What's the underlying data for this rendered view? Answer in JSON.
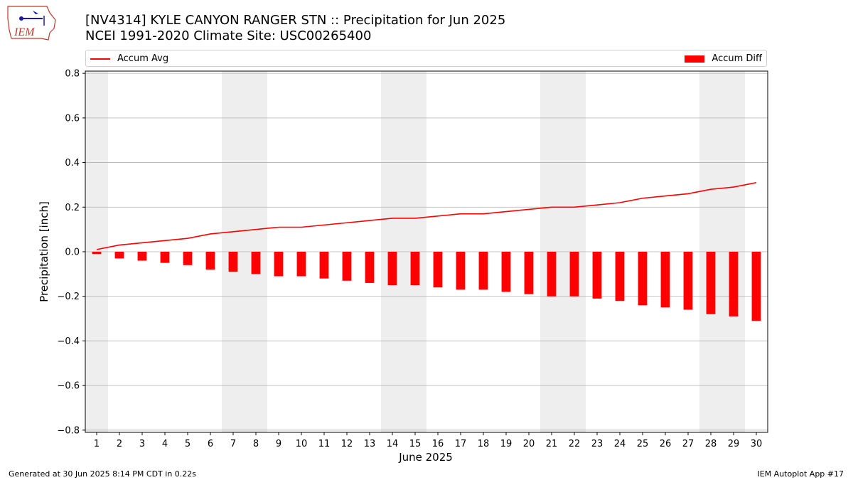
{
  "header": {
    "title_line1": "[NV4314] KYLE CANYON RANGER STN :: Precipitation for Jun 2025",
    "title_line2": "NCEI 1991-2020 Climate Site: USC00265400",
    "logo_text": "IEM"
  },
  "footer": {
    "generated": "Generated at 30 Jun 2025 8:14 PM CDT in 0.22s",
    "app": "IEM Autoplot App #17"
  },
  "colors": {
    "series": "#ff0000",
    "weekend_shade": "#eeeeee",
    "grid": "#b0b0b0",
    "logo_blue": "#1a1aa8",
    "logo_red": "#c0392b"
  },
  "chart_data": {
    "type": "bar",
    "title": "[NV4314] KYLE CANYON RANGER STN :: Precipitation for Jun 2025",
    "subtitle": "NCEI 1991-2020 Climate Site: USC00265400",
    "xlabel": "June 2025",
    "ylabel": "Precipitation [inch]",
    "x": [
      1,
      2,
      3,
      4,
      5,
      6,
      7,
      8,
      9,
      10,
      11,
      12,
      13,
      14,
      15,
      16,
      17,
      18,
      19,
      20,
      21,
      22,
      23,
      24,
      25,
      26,
      27,
      28,
      29,
      30
    ],
    "ylim": [
      -0.81,
      0.81
    ],
    "yticks": [
      -0.8,
      -0.6,
      -0.4,
      -0.2,
      0.0,
      0.2,
      0.4,
      0.6,
      0.8
    ],
    "ytick_labels": [
      "−0.8",
      "−0.6",
      "−0.4",
      "−0.2",
      "0.0",
      "0.2",
      "0.4",
      "0.6",
      "0.8"
    ],
    "grid": true,
    "legend_placement": "top",
    "shaded_days": [
      1,
      7,
      8,
      14,
      15,
      21,
      22,
      28,
      29
    ],
    "series": [
      {
        "name": "Accum Avg",
        "type": "line",
        "values": [
          0.01,
          0.03,
          0.04,
          0.05,
          0.06,
          0.08,
          0.09,
          0.1,
          0.11,
          0.11,
          0.12,
          0.13,
          0.14,
          0.15,
          0.15,
          0.16,
          0.17,
          0.17,
          0.18,
          0.19,
          0.2,
          0.2,
          0.21,
          0.22,
          0.24,
          0.25,
          0.26,
          0.28,
          0.29,
          0.31
        ]
      },
      {
        "name": "Accum Diff",
        "type": "bar",
        "values": [
          -0.01,
          -0.03,
          -0.04,
          -0.05,
          -0.06,
          -0.08,
          -0.09,
          -0.1,
          -0.11,
          -0.11,
          -0.12,
          -0.13,
          -0.14,
          -0.15,
          -0.15,
          -0.16,
          -0.17,
          -0.17,
          -0.18,
          -0.19,
          -0.2,
          -0.2,
          -0.21,
          -0.22,
          -0.24,
          -0.25,
          -0.26,
          -0.28,
          -0.29,
          -0.31
        ]
      }
    ]
  }
}
